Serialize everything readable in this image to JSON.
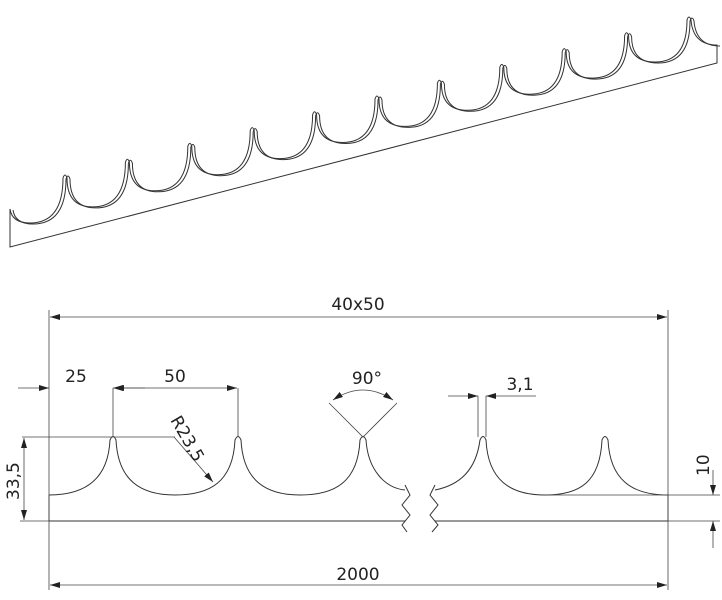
{
  "views": {
    "isometric": {
      "peak_count": 11
    },
    "front": {
      "dimensions": {
        "overall_label": "40x50",
        "length": "2000",
        "first_pitch": "25",
        "pitch": "50",
        "radius": "R23,5",
        "angle": "90°",
        "tip_width": "3,1",
        "height": "33,5",
        "base_thickness": "10"
      }
    }
  },
  "colors": {
    "line": "#333333",
    "background": "#ffffff"
  }
}
